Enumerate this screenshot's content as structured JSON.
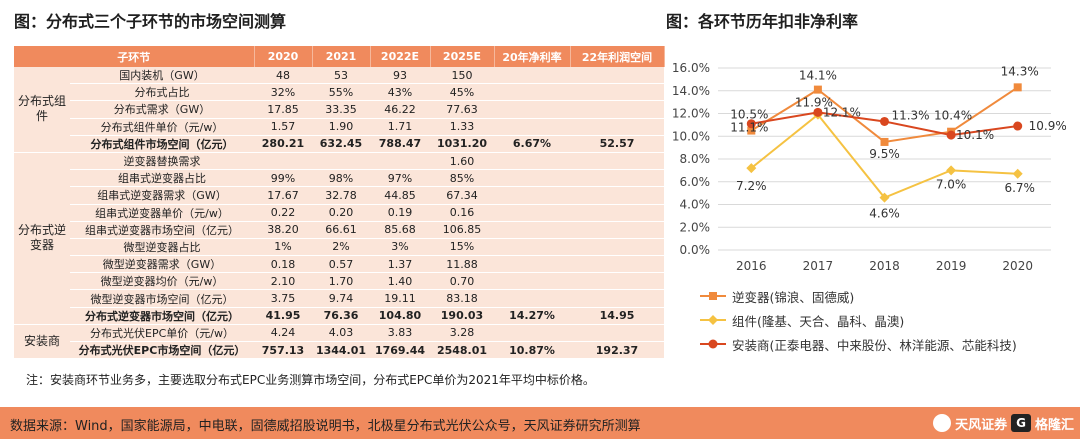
{
  "left": {
    "title": "图：分布式三个子环节的市场空间测算",
    "headers": [
      "子环节",
      "2020",
      "2021",
      "2022E",
      "2025E",
      "20年净利率",
      "22年利润空间"
    ],
    "groups": [
      {
        "label": "分布式组件",
        "rows": [
          {
            "name": "国内装机（GW）",
            "v": [
              "48",
              "53",
              "93",
              "150",
              "",
              ""
            ],
            "bold": false
          },
          {
            "name": "分布式占比",
            "v": [
              "32%",
              "55%",
              "43%",
              "45%",
              "",
              ""
            ],
            "bold": false
          },
          {
            "name": "分布式需求（GW）",
            "v": [
              "17.85",
              "33.35",
              "46.22",
              "77.63",
              "",
              ""
            ],
            "bold": false
          },
          {
            "name": "分布式组件单价（元/w）",
            "v": [
              "1.57",
              "1.90",
              "1.71",
              "1.33",
              "",
              ""
            ],
            "bold": false
          },
          {
            "name": "分布式组件市场空间（亿元）",
            "v": [
              "280.21",
              "632.45",
              "788.47",
              "1031.20",
              "6.67%",
              "52.57"
            ],
            "bold": true
          }
        ]
      },
      {
        "label": "分布式逆变器",
        "rows": [
          {
            "name": "逆变器替换需求",
            "v": [
              "",
              "",
              "",
              "1.60",
              "",
              ""
            ],
            "bold": false
          },
          {
            "name": "组串式逆变器占比",
            "v": [
              "99%",
              "98%",
              "97%",
              "85%",
              "",
              ""
            ],
            "bold": false
          },
          {
            "name": "组串式逆变器需求（GW）",
            "v": [
              "17.67",
              "32.78",
              "44.85",
              "67.34",
              "",
              ""
            ],
            "bold": false
          },
          {
            "name": "组串式逆变器单价（元/w）",
            "v": [
              "0.22",
              "0.20",
              "0.19",
              "0.16",
              "",
              ""
            ],
            "bold": false
          },
          {
            "name": "组串式逆变器市场空间（亿元）",
            "v": [
              "38.20",
              "66.61",
              "85.68",
              "106.85",
              "",
              ""
            ],
            "bold": false
          },
          {
            "name": "微型逆变器占比",
            "v": [
              "1%",
              "2%",
              "3%",
              "15%",
              "",
              ""
            ],
            "bold": false
          },
          {
            "name": "微型逆变器需求（GW）",
            "v": [
              "0.18",
              "0.57",
              "1.37",
              "11.88",
              "",
              ""
            ],
            "bold": false
          },
          {
            "name": "微型逆变器均价（元/w）",
            "v": [
              "2.10",
              "1.70",
              "1.40",
              "0.70",
              "",
              ""
            ],
            "bold": false
          },
          {
            "name": "微型逆变器市场空间（亿元）",
            "v": [
              "3.75",
              "9.74",
              "19.11",
              "83.18",
              "",
              ""
            ],
            "bold": false
          },
          {
            "name": "分布式逆变器市场空间（亿元）",
            "v": [
              "41.95",
              "76.36",
              "104.80",
              "190.03",
              "14.27%",
              "14.95"
            ],
            "bold": true
          }
        ]
      },
      {
        "label": "安装商",
        "rows": [
          {
            "name": "分布式光伏EPC单价（元/w）",
            "v": [
              "4.24",
              "4.03",
              "3.83",
              "3.28",
              "",
              ""
            ],
            "bold": false
          },
          {
            "name": "分布式光伏EPC市场空间（亿元）",
            "v": [
              "757.13",
              "1344.01",
              "1769.44",
              "2548.01",
              "10.87%",
              "192.37"
            ],
            "bold": true
          }
        ]
      }
    ],
    "note": "注：安装商环节业务多，主要选取分布式EPC业务测算市场空间，分布式EPC单价为2021年平均中标价格。"
  },
  "right": {
    "title": "图：各环节历年扣非净利率"
  },
  "chart_data": {
    "type": "line",
    "title": "图：各环节历年扣非净利率",
    "x": [
      "2016",
      "2017",
      "2018",
      "2019",
      "2020"
    ],
    "ylim": [
      0,
      16
    ],
    "yticks": [
      "0.0%",
      "2.0%",
      "4.0%",
      "6.0%",
      "8.0%",
      "10.0%",
      "12.0%",
      "14.0%",
      "16.0%"
    ],
    "grid": true,
    "legend_position": "bottom",
    "series": [
      {
        "name": "逆变器(锦浪、固德威)",
        "values": [
          10.5,
          14.1,
          9.5,
          10.4,
          14.3
        ],
        "labels": [
          "10.5%",
          "14.1%",
          "9.5%",
          "10.4%",
          "14.3%"
        ],
        "color": "#f08a3c",
        "marker": "square"
      },
      {
        "name": "组件(隆基、天合、晶科、晶澳)",
        "values": [
          7.2,
          11.9,
          4.6,
          7.0,
          6.7
        ],
        "labels": [
          "7.2%",
          "11.9%",
          "4.6%",
          "7.0%",
          "6.7%"
        ],
        "color": "#f5c242",
        "marker": "diamond"
      },
      {
        "name": "安装商(正泰电器、中来股份、林洋能源、芯能科技)",
        "values": [
          11.1,
          12.1,
          11.3,
          10.1,
          10.9
        ],
        "labels": [
          "11.1%",
          "12.1%",
          "11.3%",
          "10.1%",
          "10.9%"
        ],
        "color": "#d9471f",
        "marker": "circle"
      }
    ]
  },
  "footer": {
    "source": "数据来源：Wind，国家能源局，中电联，固德威招股说明书，北极星分布式光伏公众号，天风证券研究所测算",
    "logo_text": "天风证券",
    "logo_sub": "TF SECURITIES",
    "gl_mark": "G",
    "gl_text": "格隆汇"
  }
}
